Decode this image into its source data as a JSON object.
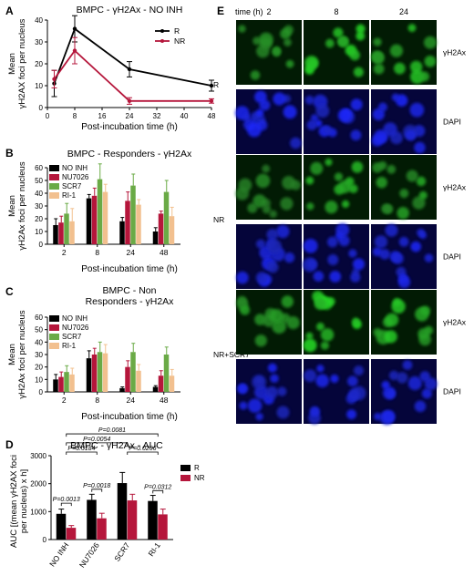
{
  "panel_letters": {
    "A": "A",
    "B": "B",
    "C": "C",
    "D": "D",
    "E": "E"
  },
  "chart_data": [
    {
      "panel": "A",
      "type": "line",
      "title": "BMPC - γH2Ax - NO INH",
      "xlabel": "Post-incubation time (h)",
      "ylabel": [
        "Mean",
        "γH2AX foci per nucleus"
      ],
      "x": [
        0,
        8,
        24,
        48
      ],
      "xticks": [
        "0",
        "8",
        "16",
        "24",
        "32",
        "40",
        "48"
      ],
      "xlim": [
        0,
        48
      ],
      "ylim": [
        0,
        40
      ],
      "yticks": [
        "0",
        "10",
        "20",
        "30",
        "40"
      ],
      "series": [
        {
          "name": "R",
          "color": "#000000",
          "x": [
            2,
            8,
            24,
            48
          ],
          "values": [
            11,
            36,
            17.5,
            10
          ],
          "errors": [
            6,
            6,
            3.5,
            2.5
          ]
        },
        {
          "name": "NR",
          "color": "#b5163b",
          "x": [
            2,
            8,
            24,
            48
          ],
          "values": [
            13,
            26,
            3,
            3
          ],
          "errors": [
            4,
            6,
            1.5,
            1
          ]
        }
      ],
      "legend_position": "top-right"
    },
    {
      "panel": "B",
      "type": "bar",
      "title": "BMPC - Responders - γH2Ax",
      "xlabel": "Post-incubation time (h)",
      "ylabel": [
        "Mean",
        "γH2Ax foci per nucleus"
      ],
      "categories": [
        "2",
        "8",
        "24",
        "48"
      ],
      "ylim": [
        0,
        60
      ],
      "yticks": [
        "0",
        "10",
        "20",
        "30",
        "40",
        "50",
        "60"
      ],
      "series": [
        {
          "name": "NO INH",
          "color": "#000000",
          "values": [
            15,
            36,
            18,
            10
          ],
          "errors": [
            5,
            3,
            3,
            3
          ]
        },
        {
          "name": "NU7026",
          "color": "#b5163b",
          "values": [
            17,
            38,
            34,
            24
          ],
          "errors": [
            5,
            6,
            7,
            2
          ]
        },
        {
          "name": "SCR7",
          "color": "#6aaa46",
          "values": [
            24,
            51,
            46,
            41
          ],
          "errors": [
            8,
            12,
            9,
            9
          ]
        },
        {
          "name": "RI-1",
          "color": "#f2c08f",
          "values": [
            18,
            41,
            31,
            22
          ],
          "errors": [
            10,
            6,
            4,
            7
          ]
        }
      ],
      "legend_position": "top-left"
    },
    {
      "panel": "C",
      "type": "bar",
      "title": [
        "BMPC - Non",
        "Responders - γH2Ax"
      ],
      "xlabel": "Post-incubation time (h)",
      "ylabel": [
        "Mean",
        "γH2Ax foci per nucleus"
      ],
      "categories": [
        "2",
        "8",
        "24",
        "48"
      ],
      "ylim": [
        0,
        60
      ],
      "yticks": [
        "0",
        "10",
        "20",
        "30",
        "40",
        "50",
        "60"
      ],
      "series": [
        {
          "name": "NO INH",
          "color": "#000000",
          "values": [
            10,
            27,
            3,
            4
          ],
          "errors": [
            4,
            6,
            1,
            1
          ]
        },
        {
          "name": "NU7026",
          "color": "#b5163b",
          "values": [
            12,
            30,
            20,
            13
          ],
          "errors": [
            4,
            5,
            5,
            4
          ]
        },
        {
          "name": "SCR7",
          "color": "#6aaa46",
          "values": [
            16,
            32,
            32,
            30
          ],
          "errors": [
            5,
            8,
            7,
            6
          ]
        },
        {
          "name": "RI-1",
          "color": "#f2c08f",
          "values": [
            14,
            31,
            17,
            13
          ],
          "errors": [
            5,
            7,
            5,
            5
          ]
        }
      ],
      "legend_position": "top-left"
    },
    {
      "panel": "D",
      "type": "bar",
      "title": "BMPC - γH2Ax - AUC",
      "xlabel": "",
      "ylabel": [
        "AUC [(mean γH2AX foci",
        "per nucleus) x h]"
      ],
      "categories": [
        "NO INH",
        "NU7026",
        "SCR7",
        "RI-1"
      ],
      "ylim": [
        0,
        3000
      ],
      "yticks": [
        "0",
        "1000",
        "2000",
        "3000"
      ],
      "series": [
        {
          "name": "R",
          "color": "#000000",
          "values": [
            920,
            1420,
            2020,
            1380
          ],
          "errors": [
            170,
            200,
            380,
            200
          ]
        },
        {
          "name": "NR",
          "color": "#b5163b",
          "values": [
            420,
            760,
            1400,
            900
          ],
          "errors": [
            80,
            180,
            220,
            190
          ]
        }
      ],
      "annotations": [
        {
          "text": "P=0.0081",
          "from": 0,
          "to": 3,
          "level": 3780
        },
        {
          "text": "P=0.0054",
          "from": 0,
          "to": 2,
          "level": 3460
        },
        {
          "text": "P=0.0184",
          "from": 0,
          "to": 1,
          "level": 3130
        },
        {
          "text": "P=0.0206",
          "from": 2,
          "to": 3,
          "level": 3130
        },
        {
          "text": "P=0.0013",
          "from": 0,
          "to": 0,
          "level": 1300
        },
        {
          "text": "P=0.0018",
          "from": 1,
          "to": 1,
          "level": 1800
        },
        {
          "text": "P=0.0312",
          "from": 3,
          "to": 3,
          "level": 1750
        }
      ],
      "legend_position": "top-right"
    }
  ],
  "microscopy": {
    "time_header": "time (h)",
    "columns": [
      "2",
      "8",
      "24"
    ],
    "groups": [
      {
        "label": "R",
        "rows": [
          "γH2Ax",
          "DAPI"
        ]
      },
      {
        "label": "NR",
        "rows": [
          "γH2Ax",
          "DAPI"
        ]
      },
      {
        "label": "NR+SCR7",
        "rows": [
          "γH2Ax",
          "DAPI"
        ]
      }
    ]
  }
}
